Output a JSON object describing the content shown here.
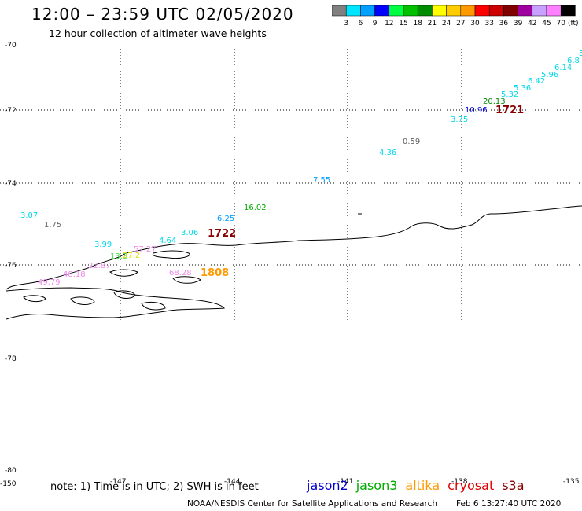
{
  "header": {
    "title": "12:00 – 23:59 UTC 02/05/2020",
    "subtitle": "12 hour collection of altimeter wave heights"
  },
  "colorbar": {
    "unit": "(ft)",
    "bins": [
      {
        "label": "3",
        "color": "#808080"
      },
      {
        "label": "6",
        "color": "#00e5ff"
      },
      {
        "label": "9",
        "color": "#00a0ff"
      },
      {
        "label": "12",
        "color": "#0000ff"
      },
      {
        "label": "15",
        "color": "#00ff40"
      },
      {
        "label": "18",
        "color": "#00c000"
      },
      {
        "label": "21",
        "color": "#008c00"
      },
      {
        "label": "24",
        "color": "#ffff00"
      },
      {
        "label": "27",
        "color": "#ffcc00"
      },
      {
        "label": "30",
        "color": "#ff9900"
      },
      {
        "label": "33",
        "color": "#ff0000"
      },
      {
        "label": "36",
        "color": "#cc0000"
      },
      {
        "label": "39",
        "color": "#800000"
      },
      {
        "label": "42",
        "color": "#a000a0"
      },
      {
        "label": "45",
        "color": "#c8a0ff"
      },
      {
        "label": "70",
        "color": "#ff80ff"
      },
      {
        "label": "",
        "color": "#000000"
      }
    ]
  },
  "axes": {
    "lat_labels": [
      "-70",
      "-72",
      "-74",
      "-76",
      "-78",
      "-80"
    ],
    "lon_labels": [
      "-150",
      "-147",
      "-144",
      "-141",
      "-138",
      "-135"
    ]
  },
  "observations": [
    {
      "text": "3.07",
      "color": "#00d8e8"
    },
    {
      "text": "1.75",
      "color": "#606060"
    },
    {
      "text": "3.99",
      "color": "#00d8e8"
    },
    {
      "text": "13.3",
      "color": "#44dd44"
    },
    {
      "text": "27.2",
      "color": "#dddd00"
    },
    {
      "text": "57.27",
      "color": "#ee88ee"
    },
    {
      "text": "4.64",
      "color": "#00d8e8"
    },
    {
      "text": "3.06",
      "color": "#00d8e8"
    },
    {
      "text": "6.25",
      "color": "#00a0ff"
    },
    {
      "text": "16.02",
      "color": "#00aa00"
    },
    {
      "text": "7.55",
      "color": "#00a0ff"
    },
    {
      "text": "4.36",
      "color": "#00d8e8"
    },
    {
      "text": "0.59",
      "color": "#606060"
    },
    {
      "text": "3.75",
      "color": "#00d8e8"
    },
    {
      "text": "10.96",
      "color": "#0000dd"
    },
    {
      "text": "20.13",
      "color": "#008800"
    },
    {
      "text": "5.32",
      "color": "#00d8e8"
    },
    {
      "text": "5.36",
      "color": "#00d8e8"
    },
    {
      "text": "6.42",
      "color": "#00d8e8"
    },
    {
      "text": "5.96",
      "color": "#00d8e8"
    },
    {
      "text": "6.14",
      "color": "#00d8e8"
    },
    {
      "text": "6.8",
      "color": "#00d8e8"
    },
    {
      "text": "5",
      "color": "#00d8e8"
    },
    {
      "text": "68.28",
      "color": "#ee88ee"
    },
    {
      "text": "48.18",
      "color": "#ee88ee"
    },
    {
      "text": "49.79",
      "color": "#ee88ee"
    },
    {
      "text": "22.87",
      "color": "#ee88ee"
    }
  ],
  "passes": [
    {
      "text": "1722",
      "color": "#880000"
    },
    {
      "text": "1808",
      "color": "#ff9900"
    },
    {
      "text": "1721",
      "color": "#880000"
    }
  ],
  "footer": {
    "note": "note: 1) Time is in UTC; 2) SWH is in feet",
    "missions": [
      {
        "name": "jason2",
        "color": "#0000cc"
      },
      {
        "name": "jason3",
        "color": "#00aa00"
      },
      {
        "name": "altika",
        "color": "#ff9900"
      },
      {
        "name": "cryosat",
        "color": "#dd0000"
      },
      {
        "name": "s3a",
        "color": "#880000"
      }
    ],
    "credit": "NOAA/NESDIS Center for Satellite Applications and Research",
    "timestamp": "Feb  6 13:27:40 UTC 2020"
  }
}
